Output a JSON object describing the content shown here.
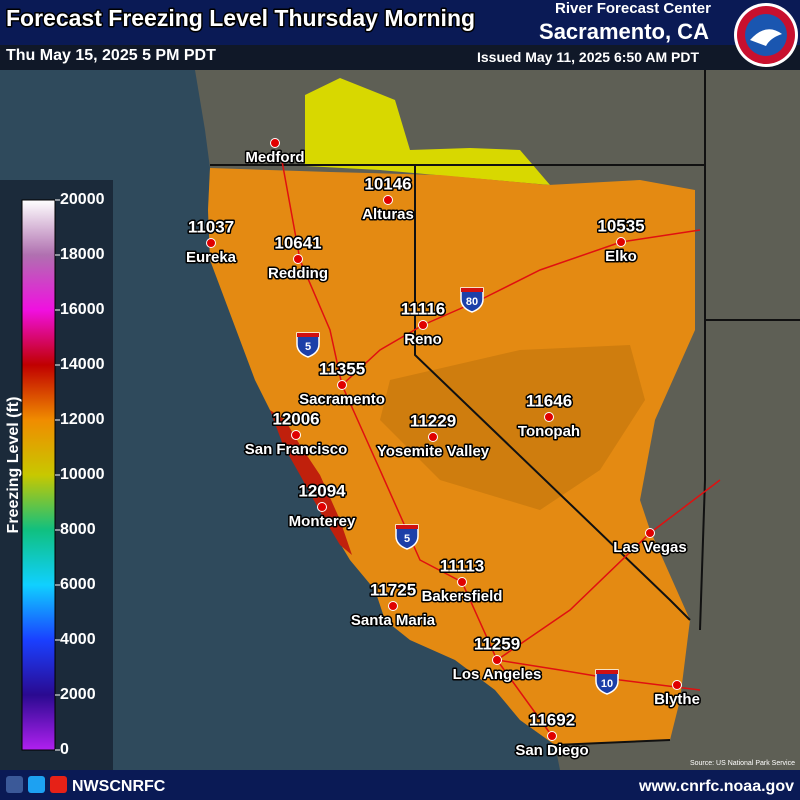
{
  "header": {
    "title": "Forecast Freezing Level Thursday Morning",
    "valid": "Thu May 15, 2025 5 PM PDT",
    "agency": "River Forecast Center",
    "location": "Sacramento, CA",
    "issued": "Issued May 11, 2025 6:50 AM PDT"
  },
  "legend": {
    "label": "Freezing Level (ft)",
    "lim": [
      0,
      20000
    ],
    "ticks": [
      0,
      2000,
      4000,
      6000,
      8000,
      10000,
      12000,
      14000,
      16000,
      18000,
      20000
    ],
    "colors": [
      "#b020f0",
      "#2a0a90",
      "#1a40ff",
      "#10d0ff",
      "#10c080",
      "#c8c800",
      "#f08c00",
      "#c00000",
      "#f010e0",
      "#b070b0",
      "#ffffff"
    ]
  },
  "cities": [
    {
      "name": "Medford"
    },
    {
      "name": "Alturas",
      "value": 10146
    },
    {
      "name": "Eureka",
      "value": 11037
    },
    {
      "name": "Redding",
      "value": 10641
    },
    {
      "name": "Elko",
      "value": 10535
    },
    {
      "name": "Reno",
      "value": 11116
    },
    {
      "name": "Sacramento",
      "value": 11355
    },
    {
      "name": "San Francisco",
      "value": 12006
    },
    {
      "name": "Yosemite Valley",
      "value": 11229
    },
    {
      "name": "Tonopah",
      "value": 11646
    },
    {
      "name": "Monterey",
      "value": 12094
    },
    {
      "name": "Las Vegas"
    },
    {
      "name": "Bakersfield",
      "value": 11113
    },
    {
      "name": "Santa Maria",
      "value": 11725
    },
    {
      "name": "Los Angeles",
      "value": 11259
    },
    {
      "name": "Blythe"
    },
    {
      "name": "San Diego",
      "value": 11692
    }
  ],
  "highway_shields": [
    "80",
    "5",
    "5",
    "10"
  ],
  "credit": "Source: US National Park Service",
  "footer": {
    "social": "NWSCNRFC",
    "url": "www.cnrfc.noaa.gov"
  }
}
